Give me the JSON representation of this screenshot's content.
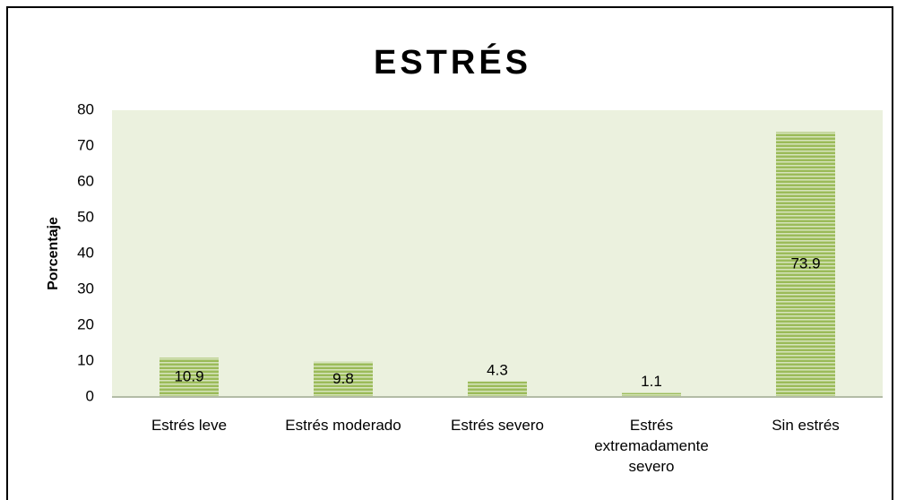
{
  "chart_data": {
    "type": "bar",
    "title": "ESTRÉS",
    "y_label": "Porcentaje",
    "categories": [
      "Estrés leve",
      "Estrés moderado",
      "Estrés severo",
      "Estrés extremadamente severo",
      "Sin estrés"
    ],
    "values": [
      10.9,
      9.8,
      4.3,
      1.1,
      73.9
    ],
    "color": "#9bbb59",
    "ylim": [
      0,
      80
    ],
    "yticks": [
      0,
      10,
      20,
      30,
      40,
      50,
      60,
      70,
      80
    ],
    "grid": false
  }
}
